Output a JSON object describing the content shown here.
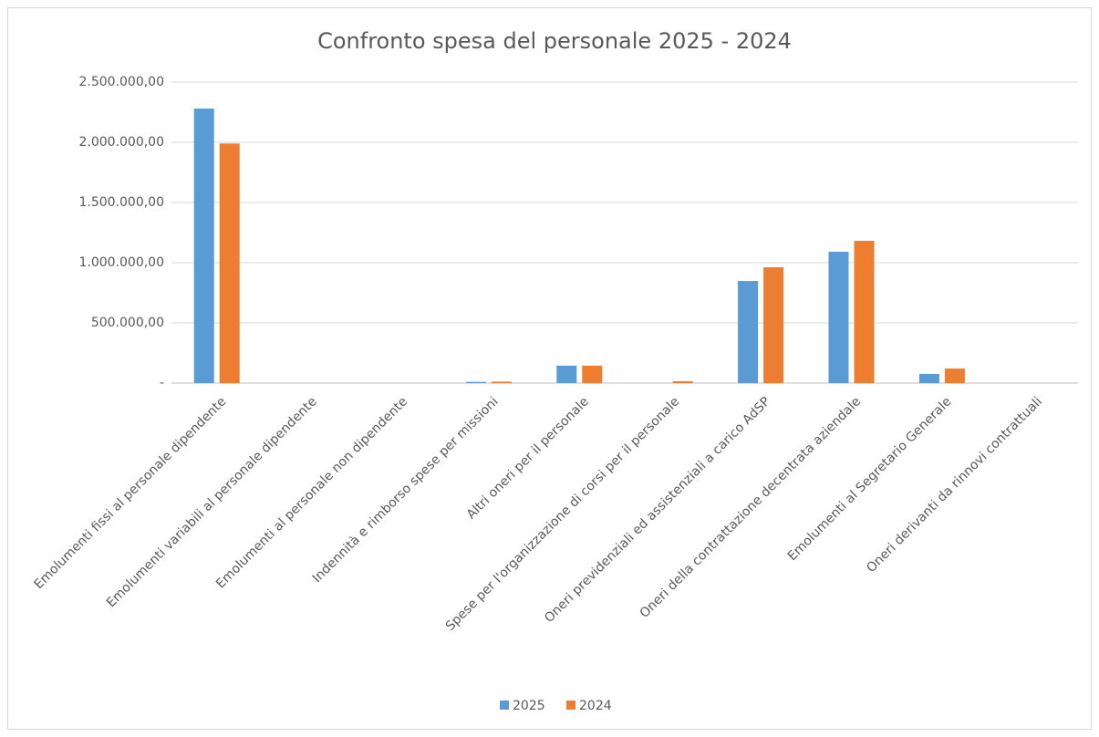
{
  "chart_data": {
    "type": "bar",
    "title": "Confronto spesa del personale 2025 - 2024",
    "categories": [
      "Emolumenti fissi al personale dipendente",
      "Emolumenti variabili al personale dipendente",
      "Emolumenti  al personale non dipendente",
      "Indennità e rimborso spese per missioni",
      "Altri oneri per il personale",
      "Spese per l'organizzazione di corsi per il personale",
      "Oneri previdenziali ed  assistenziali a carico AdSP",
      "Oneri della contrattazione decentrata aziendale",
      "Emolumenti al Segretario Generale",
      "Oneri derivanti da rinnovi contrattuali"
    ],
    "series": [
      {
        "name": "2025",
        "color": "#5b9bd5",
        "values": [
          2280000,
          0,
          0,
          10000,
          145000,
          0,
          848000,
          1091000,
          76000,
          0
        ]
      },
      {
        "name": "2024",
        "color": "#ed7d31",
        "values": [
          1990000,
          0,
          0,
          12000,
          145000,
          15000,
          962000,
          1182000,
          121000,
          0
        ]
      }
    ],
    "ylim": [
      0,
      2500000
    ],
    "yticks": [
      {
        "value": 0,
        "label": "-"
      },
      {
        "value": 500000,
        "label": "500.000,00"
      },
      {
        "value": 1000000,
        "label": "1.000.000,00"
      },
      {
        "value": 1500000,
        "label": "1.500.000,00"
      },
      {
        "value": 2000000,
        "label": "2.000.000,00"
      },
      {
        "value": 2500000,
        "label": "2.500.000,00"
      }
    ],
    "grid": true,
    "legend": "bottom"
  }
}
